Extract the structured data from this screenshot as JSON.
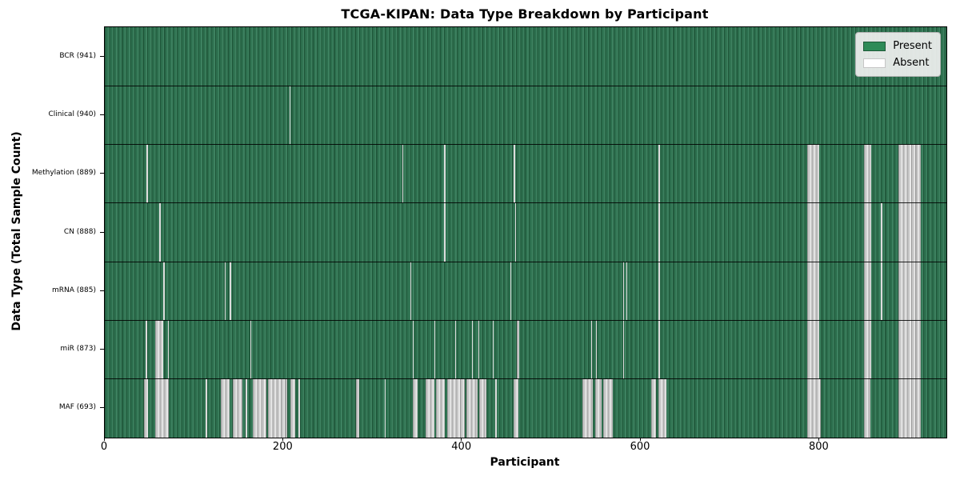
{
  "title": "TCGA-KIPAN: Data Type Breakdown by Participant",
  "x_axis": {
    "label": "Participant",
    "tick_labels": [
      "0",
      "200",
      "400",
      "600",
      "800"
    ],
    "tick_values": [
      0,
      200,
      400,
      600,
      800
    ],
    "axis_max": 942
  },
  "y_axis": {
    "label": "Data Type (Total Sample Count)"
  },
  "legend": {
    "items": [
      {
        "label": "Present",
        "color": "#2e8b57"
      },
      {
        "label": "Absent",
        "color": "#ffffff"
      }
    ]
  },
  "colors": {
    "present_green": "#2e8b57",
    "absent_white": "#ffffff",
    "plot_border": "#000000"
  },
  "chart_data": {
    "type": "heatmap",
    "title": "TCGA-KIPAN: Data Type Breakdown by Participant",
    "xlabel": "Participant",
    "ylabel": "Data Type (Total Sample Count)",
    "x_range": [
      0,
      941
    ],
    "n_participants": 941,
    "grid": false,
    "legend_position": "upper-right",
    "legend_entries": [
      "Present",
      "Absent"
    ],
    "categories": [
      "BCR (941)",
      "Clinical (940)",
      "Methylation (889)",
      "CN (888)",
      "mRNA (885)",
      "miR (873)",
      "MAF (693)"
    ],
    "rows": [
      {
        "label": "BCR (941)",
        "data_type": "BCR",
        "present_count": 941,
        "absent_ranges": []
      },
      {
        "label": "Clinical (940)",
        "data_type": "Clinical",
        "present_count": 940,
        "absent_ranges": [
          [
            207,
            208
          ]
        ]
      },
      {
        "label": "Methylation (889)",
        "data_type": "Methylation",
        "present_count": 889,
        "absent_ranges": [
          [
            47,
            48
          ],
          [
            333,
            334
          ],
          [
            380,
            381
          ],
          [
            458,
            459
          ],
          [
            620,
            621
          ],
          [
            786,
            800
          ],
          [
            850,
            858
          ],
          [
            888,
            913
          ]
        ]
      },
      {
        "label": "CN (888)",
        "data_type": "CN",
        "present_count": 888,
        "absent_ranges": [
          [
            61,
            63
          ],
          [
            380,
            381
          ],
          [
            459,
            460
          ],
          [
            620,
            621
          ],
          [
            786,
            800
          ],
          [
            850,
            858
          ],
          [
            869,
            870
          ],
          [
            888,
            913
          ]
        ]
      },
      {
        "label": "mRNA (885)",
        "data_type": "mRNA",
        "present_count": 885,
        "absent_ranges": [
          [
            65,
            67
          ],
          [
            134,
            135
          ],
          [
            140,
            141
          ],
          [
            342,
            343
          ],
          [
            454,
            455
          ],
          [
            580,
            581
          ],
          [
            584,
            585
          ],
          [
            620,
            621
          ],
          [
            786,
            800
          ],
          [
            850,
            858
          ],
          [
            869,
            870
          ],
          [
            888,
            913
          ]
        ]
      },
      {
        "label": "miR (873)",
        "data_type": "miR",
        "present_count": 873,
        "absent_ranges": [
          [
            46,
            47
          ],
          [
            56,
            65
          ],
          [
            71,
            72
          ],
          [
            163,
            164
          ],
          [
            345,
            346
          ],
          [
            369,
            370
          ],
          [
            392,
            393
          ],
          [
            411,
            412
          ],
          [
            418,
            419
          ],
          [
            434,
            435
          ],
          [
            461,
            464
          ],
          [
            544,
            545
          ],
          [
            550,
            551
          ],
          [
            580,
            581
          ],
          [
            620,
            621
          ],
          [
            786,
            800
          ],
          [
            850,
            858
          ],
          [
            888,
            913
          ]
        ]
      },
      {
        "label": "MAF (693)",
        "data_type": "MAF",
        "present_count": 693,
        "absent_ranges": [
          [
            44,
            48
          ],
          [
            56,
            72
          ],
          [
            113,
            115
          ],
          [
            130,
            140
          ],
          [
            143,
            154
          ],
          [
            158,
            159
          ],
          [
            166,
            181
          ],
          [
            183,
            204
          ],
          [
            208,
            213
          ],
          [
            217,
            218
          ],
          [
            281,
            285
          ],
          [
            313,
            314
          ],
          [
            345,
            350
          ],
          [
            359,
            369
          ],
          [
            371,
            381
          ],
          [
            383,
            403
          ],
          [
            405,
            417
          ],
          [
            419,
            427
          ],
          [
            437,
            439
          ],
          [
            458,
            463
          ],
          [
            535,
            546
          ],
          [
            549,
            556
          ],
          [
            558,
            569
          ],
          [
            612,
            617
          ],
          [
            620,
            629
          ],
          [
            786,
            801
          ],
          [
            850,
            857
          ],
          [
            888,
            913
          ]
        ]
      }
    ]
  }
}
